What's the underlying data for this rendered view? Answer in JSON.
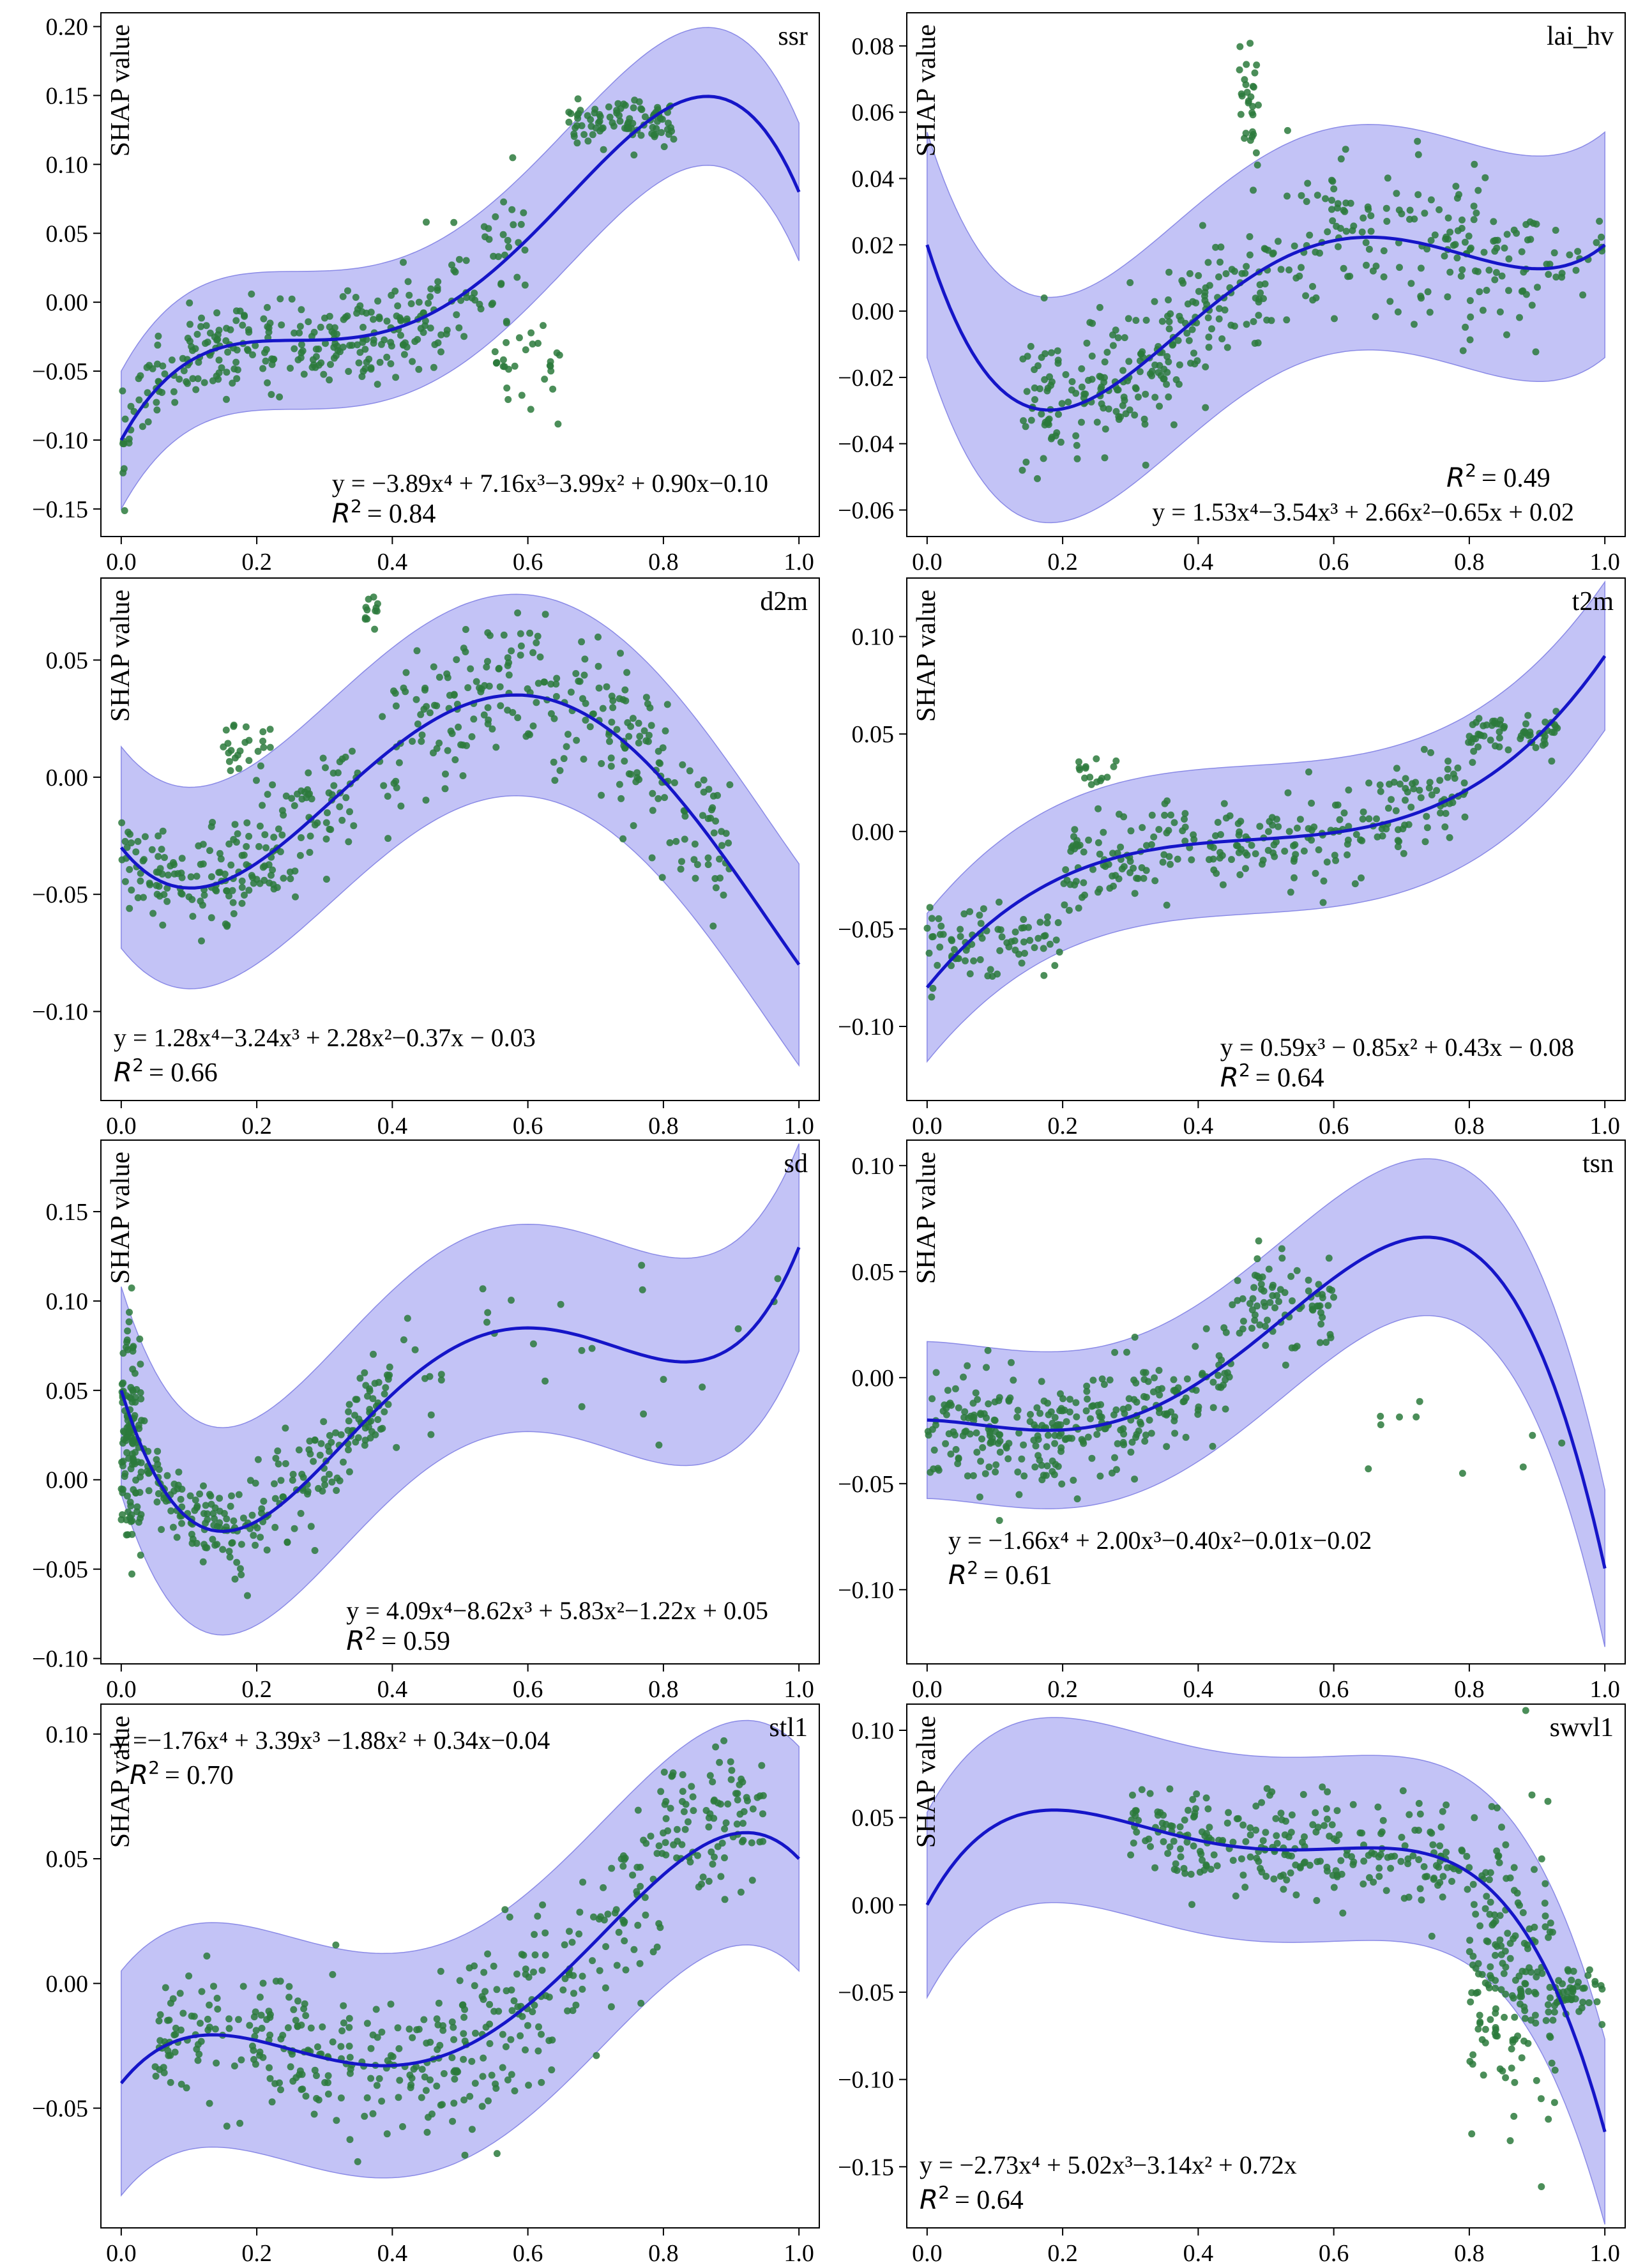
{
  "figure": {
    "ylabel": "SHAP value",
    "colors": {
      "fit_line": "#1515c8",
      "band": "#b8b8f5",
      "band_edge": "#8a8ae6",
      "point": "#2b7a3c",
      "axis": "#000000"
    }
  },
  "chart_data": [
    {
      "type": "scatter",
      "title": "ssr",
      "ylabel": "SHAP value",
      "xlim": [
        -0.03,
        1.03
      ],
      "ylim": [
        -0.17,
        0.21
      ],
      "xticks": [
        0.0,
        0.2,
        0.4,
        0.6,
        0.8,
        1.0
      ],
      "xtick_labels": [
        "0.0",
        "0.2",
        "0.4",
        "0.6",
        "0.8",
        "1.0"
      ],
      "yticks": [
        -0.15,
        -0.1,
        -0.05,
        0.0,
        0.05,
        0.1,
        0.15,
        0.2
      ],
      "ytick_labels": [
        "−0.15",
        "−0.10",
        "−0.05",
        "0.00",
        "0.05",
        "0.10",
        "0.15",
        "0.20"
      ],
      "fit_coeffs": [
        -3.89,
        7.16,
        -3.99,
        0.9,
        -0.1
      ],
      "band_halfwidth": 0.05,
      "equation": "y = −3.89x⁴ + 7.16x³−3.99x² + 0.90x−0.10",
      "r2_label": "R",
      "r2": "= 0.84",
      "equation_position": "bottom-right",
      "point_clusters": [
        {
          "x": [
            0.0,
            0.45
          ],
          "spread": 0.016,
          "n": 260
        },
        {
          "x": [
            0.45,
            0.6
          ],
          "spread": 0.025,
          "n": 60
        },
        {
          "x": [
            0.66,
            0.82
          ],
          "center": 0.13,
          "spread": 0.008,
          "n": 90
        },
        {
          "x": [
            0.55,
            0.65
          ],
          "center": -0.05,
          "spread": 0.015,
          "n": 30
        }
      ]
    },
    {
      "type": "scatter",
      "title": "lai_hv",
      "ylabel": "SHAP value",
      "xlim": [
        -0.03,
        1.03
      ],
      "ylim": [
        -0.068,
        0.09
      ],
      "xticks": [
        0.0,
        0.2,
        0.4,
        0.6,
        0.8,
        1.0
      ],
      "xtick_labels": [
        "0.0",
        "0.2",
        "0.4",
        "0.6",
        "0.8",
        "1.0"
      ],
      "yticks": [
        -0.06,
        -0.04,
        -0.02,
        0.0,
        0.02,
        0.04,
        0.06,
        0.08
      ],
      "ytick_labels": [
        "−0.06",
        "−0.04",
        "−0.02",
        "0.00",
        "0.02",
        "0.04",
        "0.06",
        "0.08"
      ],
      "fit_coeffs": [
        1.53,
        -3.54,
        2.66,
        -0.65,
        0.02
      ],
      "band_halfwidth": 0.034,
      "equation": "y = 1.53x⁴−3.54x³ + 2.66x²−0.65x + 0.02",
      "r2_label": "R",
      "r2": "= 0.49",
      "equation_position": "bottom-right",
      "point_clusters": [
        {
          "x": [
            0.14,
            0.45
          ],
          "spread": 0.011,
          "n": 220
        },
        {
          "x": [
            0.45,
            0.9
          ],
          "spread": 0.012,
          "n": 200
        },
        {
          "x": [
            0.46,
            0.49
          ],
          "center": 0.065,
          "spread": 0.01,
          "n": 30
        },
        {
          "x": [
            0.9,
            1.0
          ],
          "spread": 0.006,
          "n": 20
        }
      ]
    },
    {
      "type": "scatter",
      "title": "d2m",
      "ylabel": "SHAP value",
      "xlim": [
        -0.03,
        1.03
      ],
      "ylim": [
        -0.138,
        0.085
      ],
      "xticks": [
        0.0,
        0.2,
        0.4,
        0.6,
        0.8,
        1.0
      ],
      "xtick_labels": [
        "0.0",
        "0.2",
        "0.4",
        "0.6",
        "0.8",
        "1.0"
      ],
      "yticks": [
        -0.1,
        -0.05,
        0.0,
        0.05
      ],
      "ytick_labels": [
        "−0.10",
        "−0.05",
        "0.00",
        "0.05"
      ],
      "fit_coeffs": [
        1.28,
        -3.24,
        2.28,
        -0.37,
        -0.03
      ],
      "band_halfwidth": 0.043,
      "equation": "y = 1.28x⁴−3.24x³ + 2.28x²−0.37x − 0.03",
      "r2_label": "R",
      "r2": "= 0.66",
      "equation_position": "bottom-left",
      "point_clusters": [
        {
          "x": [
            0.0,
            0.35
          ],
          "spread": 0.012,
          "n": 200
        },
        {
          "x": [
            0.38,
            0.9
          ],
          "spread": 0.016,
          "n": 260
        },
        {
          "x": [
            0.15,
            0.22
          ],
          "center": 0.012,
          "spread": 0.006,
          "n": 25
        },
        {
          "x": [
            0.36,
            0.38
          ],
          "center": 0.07,
          "spread": 0.005,
          "n": 12
        }
      ]
    },
    {
      "type": "scatter",
      "title": "t2m",
      "ylabel": "SHAP value",
      "xlim": [
        -0.03,
        1.03
      ],
      "ylim": [
        -0.138,
        0.13
      ],
      "xticks": [
        0.0,
        0.2,
        0.4,
        0.6,
        0.8,
        1.0
      ],
      "xtick_labels": [
        "0.0",
        "0.2",
        "0.4",
        "0.6",
        "0.8",
        "1.0"
      ],
      "yticks": [
        -0.1,
        -0.05,
        0.0,
        0.05,
        0.1
      ],
      "ytick_labels": [
        "−0.10",
        "−0.05",
        "0.00",
        "0.05",
        "0.10"
      ],
      "fit_coeffs": [
        0,
        0.59,
        -0.85,
        0.43,
        -0.08
      ],
      "band_halfwidth": 0.038,
      "equation": "y = 0.59x³ − 0.85x² + 0.43x − 0.08",
      "r2_label": "R",
      "r2": "= 0.64",
      "equation_position": "bottom-right",
      "point_clusters": [
        {
          "x": [
            0.0,
            0.2
          ],
          "center": -0.055,
          "spread": 0.009,
          "n": 80
        },
        {
          "x": [
            0.2,
            0.8
          ],
          "spread": 0.012,
          "n": 260
        },
        {
          "x": [
            0.8,
            0.93
          ],
          "center": 0.05,
          "spread": 0.006,
          "n": 60
        },
        {
          "x": [
            0.22,
            0.28
          ],
          "center": 0.03,
          "spread": 0.005,
          "n": 15
        }
      ]
    },
    {
      "type": "scatter",
      "title": "sd",
      "ylabel": "SHAP value",
      "xlim": [
        -0.03,
        1.03
      ],
      "ylim": [
        -0.103,
        0.19
      ],
      "xticks": [
        0.0,
        0.2,
        0.4,
        0.6,
        0.8,
        1.0
      ],
      "xtick_labels": [
        "0.0",
        "0.2",
        "0.4",
        "0.6",
        "0.8",
        "1.0"
      ],
      "yticks": [
        -0.1,
        -0.05,
        0.0,
        0.05,
        0.1,
        0.15
      ],
      "ytick_labels": [
        "−0.10",
        "−0.05",
        "0.00",
        "0.05",
        "0.10",
        "0.15"
      ],
      "fit_coeffs": [
        4.09,
        -8.62,
        5.83,
        -1.22,
        0.05
      ],
      "band_halfwidth": 0.058,
      "equation": "y = 4.09x⁴−8.62x³ + 5.83x²−1.22x + 0.05",
      "r2_label": "R",
      "r2": "= 0.59",
      "equation_position": "bottom-right",
      "point_clusters": [
        {
          "x": [
            0.0,
            0.03
          ],
          "center": 0.02,
          "spread": 0.035,
          "n": 120
        },
        {
          "x": [
            0.03,
            0.4
          ],
          "spread": 0.013,
          "n": 240
        },
        {
          "x": [
            0.4,
            1.0
          ],
          "spread": 0.02,
          "n": 30
        }
      ]
    },
    {
      "type": "scatter",
      "title": "tsn",
      "ylabel": "SHAP value",
      "xlim": [
        -0.03,
        1.03
      ],
      "ylim": [
        -0.135,
        0.112
      ],
      "xticks": [
        0.0,
        0.2,
        0.4,
        0.6,
        0.8,
        1.0
      ],
      "xtick_labels": [
        "0.0",
        "0.2",
        "0.4",
        "0.6",
        "0.8",
        "1.0"
      ],
      "yticks": [
        -0.1,
        -0.05,
        0.0,
        0.05,
        0.1
      ],
      "ytick_labels": [
        "−0.10",
        "−0.05",
        "0.00",
        "0.05",
        "0.10"
      ],
      "fit_coeffs": [
        -1.66,
        2.0,
        -0.4,
        -0.01,
        -0.02
      ],
      "band_halfwidth": 0.037,
      "equation": "y = −1.66x⁴ + 2.00x³−0.40x²−0.01x−0.02",
      "r2_label": "R",
      "r2": "= 0.61",
      "equation_position": "bottom-left",
      "point_clusters": [
        {
          "x": [
            0.0,
            0.45
          ],
          "spread": 0.013,
          "n": 300
        },
        {
          "x": [
            0.45,
            0.6
          ],
          "center": 0.035,
          "spread": 0.014,
          "n": 80
        },
        {
          "x": [
            0.65,
            1.0
          ],
          "center": -0.03,
          "spread": 0.01,
          "n": 10
        }
      ]
    },
    {
      "type": "scatter",
      "title": "stl1",
      "ylabel": "SHAP value",
      "xlim": [
        -0.03,
        1.03
      ],
      "ylim": [
        -0.098,
        0.112
      ],
      "xticks": [
        0.0,
        0.2,
        0.4,
        0.6,
        0.8,
        1.0
      ],
      "xtick_labels": [
        "0.0",
        "0.2",
        "0.4",
        "0.6",
        "0.8",
        "1.0"
      ],
      "yticks": [
        -0.05,
        0.0,
        0.05,
        0.1
      ],
      "ytick_labels": [
        "−0.05",
        "0.00",
        "0.05",
        "0.10"
      ],
      "fit_coeffs": [
        -1.76,
        3.39,
        -1.88,
        0.34,
        -0.04
      ],
      "band_halfwidth": 0.045,
      "equation": "y =−1.76x⁴ + 3.39x³ −1.88x² + 0.34x−0.04",
      "r2_label": "R",
      "r2": "= 0.70",
      "equation_position": "top-left",
      "point_clusters": [
        {
          "x": [
            0.05,
            0.5
          ],
          "spread": 0.013,
          "n": 240
        },
        {
          "x": [
            0.5,
            0.8
          ],
          "spread": 0.02,
          "n": 160
        },
        {
          "x": [
            0.8,
            0.95
          ],
          "center": 0.065,
          "spread": 0.013,
          "n": 90
        }
      ]
    },
    {
      "type": "scatter",
      "title": "swvl1",
      "ylabel": "SHAP value",
      "xlim": [
        -0.03,
        1.03
      ],
      "ylim": [
        -0.185,
        0.115
      ],
      "xticks": [
        0.0,
        0.2,
        0.4,
        0.6,
        0.8,
        1.0
      ],
      "xtick_labels": [
        "0.0",
        "0.2",
        "0.4",
        "0.6",
        "0.8",
        "1.0"
      ],
      "yticks": [
        -0.15,
        -0.1,
        -0.05,
        0.0,
        0.05,
        0.1
      ],
      "ytick_labels": [
        "−0.15",
        "−0.10",
        "−0.05",
        "0.00",
        "0.05",
        "0.10"
      ],
      "fit_coeffs": [
        -2.73,
        5.02,
        -3.14,
        0.72,
        0.0
      ],
      "band_halfwidth": 0.053,
      "equation": "y = −2.73x⁴ + 5.02x³−3.14x² + 0.72x",
      "r2_label": "R",
      "r2": "= 0.64",
      "equation_position": "bottom-left",
      "point_clusters": [
        {
          "x": [
            0.3,
            0.8
          ],
          "spread": 0.015,
          "n": 260
        },
        {
          "x": [
            0.8,
            0.93
          ],
          "center": -0.04,
          "spread": 0.04,
          "n": 180
        },
        {
          "x": [
            0.93,
            1.0
          ],
          "center": -0.05,
          "spread": 0.008,
          "n": 40
        }
      ]
    }
  ]
}
